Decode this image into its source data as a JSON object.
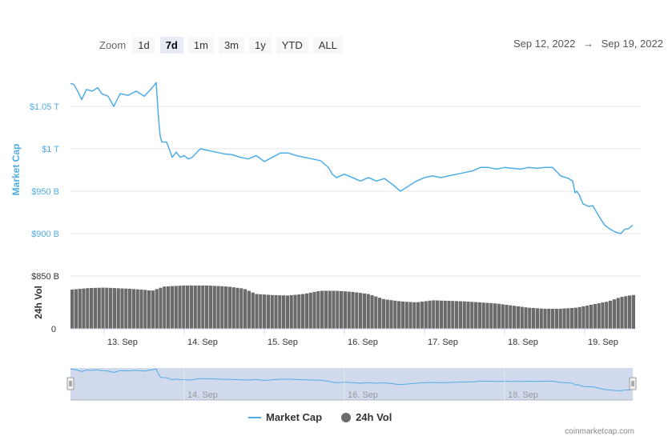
{
  "toolbar": {
    "zoom_label": "Zoom",
    "zoom_buttons": [
      "1d",
      "7d",
      "1m",
      "3m",
      "1y",
      "YTD",
      "ALL"
    ],
    "active_zoom": "7d",
    "date_from": "Sep 12, 2022",
    "arrow": "→",
    "date_to": "Sep 19, 2022"
  },
  "legend": {
    "market_cap": "Market Cap",
    "volume": "24h Vol"
  },
  "credits": "coinmarketcap.com",
  "colors": {
    "market_cap_line": "#4fade6",
    "volume_bars": "#6b6b6b",
    "navigator_fill": "#ccd6eb",
    "axis_label": "#4fade6"
  },
  "chart_data": {
    "type": "line",
    "market_cap_axis": {
      "label": "Market Cap",
      "ticks": [
        "$1.05 T",
        "$1 T",
        "$950 B",
        "$900 B",
        "$850 B"
      ],
      "tick_values": [
        1050,
        1000,
        950,
        900,
        850
      ],
      "range_billion_usd": [
        850,
        1100
      ]
    },
    "volume_axis": {
      "label": "24h Vol",
      "ticks": [
        "0"
      ]
    },
    "x_ticks": [
      "13. Sep",
      "14. Sep",
      "15. Sep",
      "16. Sep",
      "17. Sep",
      "18. Sep",
      "19. Sep"
    ],
    "x_tick_values": [
      13,
      14,
      15,
      16,
      17,
      18,
      19
    ],
    "navigator_ticks": [
      "14. Sep",
      "16. Sep",
      "18. Sep"
    ],
    "navigator_tick_values": [
      14,
      16,
      18
    ],
    "x_range_days": [
      12.58,
      19.6
    ],
    "series": [
      {
        "name": "Market Cap",
        "unit": "billion USD",
        "x": [
          12.58,
          12.62,
          12.67,
          12.72,
          12.78,
          12.85,
          12.92,
          12.97,
          13.05,
          13.12,
          13.2,
          13.3,
          13.4,
          13.5,
          13.6,
          13.65,
          13.68,
          13.7,
          13.72,
          13.78,
          13.85,
          13.9,
          13.95,
          14.0,
          14.05,
          14.1,
          14.2,
          14.3,
          14.4,
          14.5,
          14.6,
          14.7,
          14.8,
          14.9,
          15.0,
          15.1,
          15.2,
          15.3,
          15.4,
          15.5,
          15.6,
          15.7,
          15.8,
          15.85,
          15.9,
          16.0,
          16.1,
          16.2,
          16.3,
          16.4,
          16.5,
          16.6,
          16.7,
          16.8,
          16.9,
          17.0,
          17.1,
          17.2,
          17.3,
          17.4,
          17.5,
          17.6,
          17.7,
          17.8,
          17.9,
          18.0,
          18.1,
          18.2,
          18.3,
          18.4,
          18.5,
          18.6,
          18.7,
          18.8,
          18.85,
          18.88,
          18.9,
          18.93,
          18.98,
          19.05,
          19.1,
          19.18,
          19.25,
          19.32,
          19.38,
          19.45,
          19.5,
          19.55,
          19.6
        ],
        "values": [
          1077,
          1076,
          1068,
          1058,
          1070,
          1068,
          1072,
          1065,
          1062,
          1050,
          1065,
          1063,
          1068,
          1062,
          1072,
          1078,
          1035,
          1015,
          1008,
          1008,
          990,
          996,
          990,
          992,
          988,
          990,
          1000,
          998,
          996,
          994,
          993,
          990,
          988,
          992,
          985,
          990,
          995,
          995,
          992,
          990,
          988,
          986,
          978,
          970,
          966,
          970,
          966,
          962,
          966,
          962,
          965,
          958,
          950,
          956,
          962,
          966,
          968,
          966,
          968,
          970,
          972,
          974,
          978,
          978,
          976,
          978,
          977,
          976,
          978,
          977,
          978,
          978,
          968,
          965,
          962,
          948,
          950,
          946,
          935,
          932,
          933,
          920,
          910,
          905,
          902,
          900,
          905,
          906,
          910
        ]
      },
      {
        "name": "24h Vol",
        "relative_to_axis_top": true,
        "x": [
          12.58,
          12.8,
          13.0,
          13.3,
          13.5,
          13.6,
          13.75,
          14.0,
          14.3,
          14.55,
          14.75,
          14.9,
          15.1,
          15.3,
          15.5,
          15.7,
          15.9,
          16.1,
          16.3,
          16.5,
          16.7,
          16.9,
          17.1,
          17.3,
          17.5,
          17.7,
          17.9,
          18.1,
          18.3,
          18.5,
          18.7,
          18.9,
          19.1,
          19.3,
          19.45,
          19.6
        ],
        "values": [
          0.74,
          0.77,
          0.78,
          0.76,
          0.74,
          0.72,
          0.8,
          0.82,
          0.82,
          0.8,
          0.76,
          0.66,
          0.64,
          0.63,
          0.66,
          0.72,
          0.72,
          0.7,
          0.66,
          0.56,
          0.52,
          0.5,
          0.54,
          0.53,
          0.52,
          0.5,
          0.48,
          0.44,
          0.4,
          0.38,
          0.38,
          0.4,
          0.46,
          0.52,
          0.6,
          0.64
        ]
      }
    ]
  }
}
